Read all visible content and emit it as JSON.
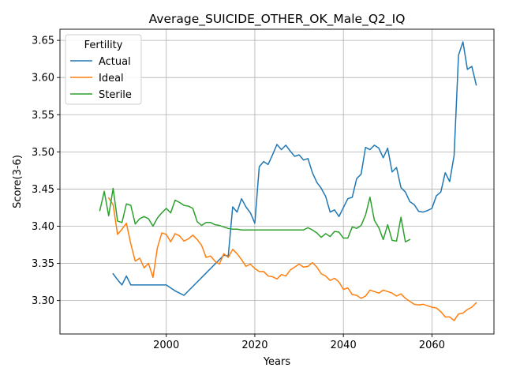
{
  "chart_data": {
    "type": "line",
    "title": "Average_SUICIDE_OTHER_OK_Male_Q2_IQ",
    "xlabel": "Years",
    "ylabel": "Score(3-6)",
    "xlim": [
      1976,
      2074
    ],
    "ylim": [
      3.255,
      3.665
    ],
    "xticks": [
      2000,
      2020,
      2040,
      2060
    ],
    "yticks": [
      3.3,
      3.35,
      3.4,
      3.45,
      3.5,
      3.55,
      3.6,
      3.65
    ],
    "grid": true,
    "legend": {
      "title": "Fertility",
      "placement": "top-left"
    },
    "colors": {
      "Actual": "#1f77b4",
      "Ideal": "#ff7f0e",
      "Sterile": "#2ca02c"
    },
    "series": [
      {
        "name": "Actual",
        "x": [
          1988,
          1989,
          1990,
          1991,
          1992,
          1993,
          1994,
          1995,
          1996,
          1997,
          1998,
          1999,
          2000,
          2001,
          2002,
          2003,
          2004,
          2005,
          2006,
          2007,
          2008,
          2009,
          2010,
          2011,
          2012,
          2013,
          2014,
          2015,
          2016,
          2017,
          2018,
          2019,
          2020,
          2021,
          2022,
          2023,
          2024,
          2025,
          2026,
          2027,
          2028,
          2029,
          2030,
          2031,
          2032,
          2033,
          2034,
          2035,
          2036,
          2037,
          2038,
          2039,
          2040,
          2041,
          2042,
          2043,
          2044,
          2045,
          2046,
          2047,
          2048,
          2049,
          2050,
          2051,
          2052,
          2053,
          2054,
          2055,
          2056,
          2057,
          2058,
          2059,
          2060,
          2061,
          2062,
          2063,
          2064,
          2065,
          2066,
          2067,
          2068,
          2069,
          2070
        ],
        "values": [
          3.336,
          3.328,
          3.321,
          3.333,
          3.321,
          3.321,
          3.321,
          3.321,
          3.321,
          3.321,
          3.321,
          3.321,
          3.321,
          3.317,
          3.313,
          3.31,
          3.307,
          3.313,
          3.319,
          3.325,
          3.331,
          3.337,
          3.343,
          3.349,
          3.355,
          3.361,
          3.36,
          3.426,
          3.419,
          3.437,
          3.426,
          3.418,
          3.404,
          3.48,
          3.487,
          3.483,
          3.496,
          3.51,
          3.503,
          3.509,
          3.501,
          3.494,
          3.496,
          3.489,
          3.491,
          3.472,
          3.459,
          3.451,
          3.44,
          3.419,
          3.422,
          3.413,
          3.425,
          3.437,
          3.439,
          3.464,
          3.47,
          3.506,
          3.503,
          3.509,
          3.505,
          3.492,
          3.505,
          3.473,
          3.479,
          3.452,
          3.446,
          3.433,
          3.429,
          3.42,
          3.419,
          3.421,
          3.424,
          3.441,
          3.446,
          3.472,
          3.46,
          3.495,
          3.63,
          3.648,
          3.611,
          3.615,
          3.59
        ]
      },
      {
        "name": "Ideal",
        "x": [
          1987,
          1988,
          1989,
          1990,
          1991,
          1992,
          1993,
          1994,
          1995,
          1996,
          1997,
          1998,
          1999,
          2000,
          2001,
          2002,
          2003,
          2004,
          2005,
          2006,
          2007,
          2008,
          2009,
          2010,
          2011,
          2012,
          2013,
          2014,
          2015,
          2016,
          2017,
          2018,
          2019,
          2020,
          2021,
          2022,
          2023,
          2024,
          2025,
          2026,
          2027,
          2028,
          2029,
          2030,
          2031,
          2032,
          2033,
          2034,
          2035,
          2036,
          2037,
          2038,
          2039,
          2040,
          2041,
          2042,
          2043,
          2044,
          2045,
          2046,
          2047,
          2048,
          2049,
          2050,
          2051,
          2052,
          2053,
          2054,
          2055,
          2056,
          2057,
          2058,
          2059,
          2060,
          2061,
          2062,
          2063,
          2064,
          2065,
          2066,
          2067,
          2068,
          2069,
          2070
        ],
        "values": [
          3.438,
          3.429,
          3.389,
          3.396,
          3.404,
          3.376,
          3.353,
          3.357,
          3.344,
          3.35,
          3.331,
          3.371,
          3.391,
          3.389,
          3.379,
          3.39,
          3.387,
          3.38,
          3.383,
          3.388,
          3.382,
          3.374,
          3.358,
          3.36,
          3.353,
          3.349,
          3.363,
          3.358,
          3.369,
          3.363,
          3.355,
          3.346,
          3.349,
          3.343,
          3.339,
          3.339,
          3.333,
          3.332,
          3.329,
          3.335,
          3.333,
          3.341,
          3.345,
          3.349,
          3.345,
          3.346,
          3.351,
          3.345,
          3.336,
          3.333,
          3.327,
          3.33,
          3.325,
          3.315,
          3.317,
          3.308,
          3.307,
          3.303,
          3.306,
          3.314,
          3.312,
          3.31,
          3.314,
          3.312,
          3.31,
          3.306,
          3.309,
          3.303,
          3.299,
          3.295,
          3.294,
          3.295,
          3.293,
          3.291,
          3.29,
          3.285,
          3.278,
          3.278,
          3.273,
          3.282,
          3.283,
          3.288,
          3.291,
          3.297
        ]
      },
      {
        "name": "Sterile",
        "x": [
          1985,
          1986,
          1987,
          1988,
          1989,
          1990,
          1991,
          1992,
          1993,
          1994,
          1995,
          1996,
          1997,
          1998,
          1999,
          2000,
          2001,
          2002,
          2003,
          2004,
          2005,
          2006,
          2007,
          2008,
          2009,
          2010,
          2011,
          2012,
          2013,
          2014,
          2015,
          2016,
          2017,
          2018,
          2019,
          2020,
          2021,
          2022,
          2023,
          2024,
          2025,
          2026,
          2027,
          2028,
          2029,
          2030,
          2031,
          2032,
          2033,
          2034,
          2035,
          2036,
          2037,
          2038,
          2039,
          2040,
          2041,
          2042,
          2043,
          2044,
          2045,
          2046,
          2047,
          2048,
          2049,
          2050,
          2051,
          2052,
          2053,
          2054,
          2055
        ],
        "values": [
          3.421,
          3.447,
          3.414,
          3.451,
          3.407,
          3.405,
          3.43,
          3.428,
          3.403,
          3.41,
          3.413,
          3.41,
          3.4,
          3.411,
          3.418,
          3.424,
          3.418,
          3.435,
          3.432,
          3.428,
          3.427,
          3.424,
          3.406,
          3.401,
          3.405,
          3.405,
          3.402,
          3.401,
          3.399,
          3.397,
          3.396,
          3.396,
          3.395,
          3.395,
          3.395,
          3.395,
          3.395,
          3.395,
          3.395,
          3.395,
          3.395,
          3.395,
          3.395,
          3.395,
          3.395,
          3.395,
          3.395,
          3.398,
          3.395,
          3.391,
          3.385,
          3.39,
          3.386,
          3.393,
          3.392,
          3.384,
          3.384,
          3.399,
          3.397,
          3.401,
          3.415,
          3.439,
          3.408,
          3.398,
          3.382,
          3.402,
          3.381,
          3.38,
          3.412,
          3.379,
          3.382
        ]
      }
    ]
  }
}
